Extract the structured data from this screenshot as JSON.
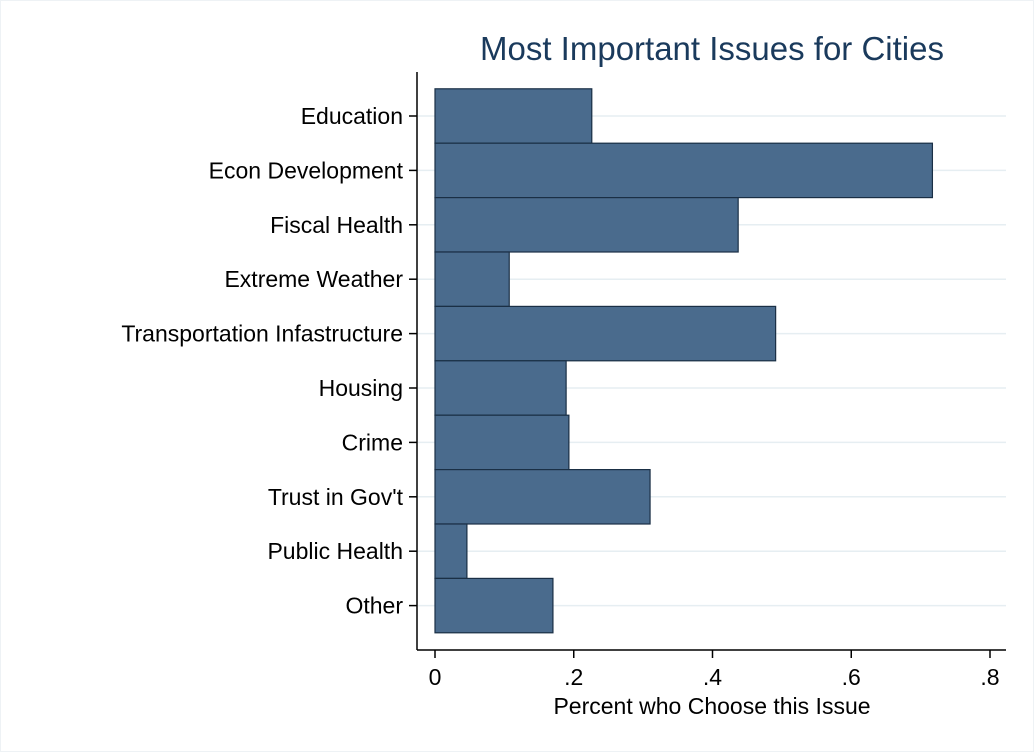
{
  "chart_data": {
    "type": "bar",
    "orientation": "horizontal",
    "title": "Most Important Issues for Cities",
    "xlabel": "Percent who Choose this Issue",
    "ylabel": "",
    "xlim": [
      0,
      0.8
    ],
    "x_ticks": [
      0,
      0.2,
      0.4,
      0.6,
      0.8
    ],
    "x_tick_labels": [
      "0",
      ".2",
      ".4",
      ".6",
      ".8"
    ],
    "categories": [
      "Education",
      "Econ Development",
      "Fiscal Health",
      "Extreme Weather",
      "Transportation Infastructure",
      "Housing",
      "Crime",
      "Trust in Gov't",
      "Public Health",
      "Other"
    ],
    "values": [
      0.226,
      0.717,
      0.437,
      0.107,
      0.491,
      0.189,
      0.193,
      0.31,
      0.046,
      0.17
    ],
    "grid": true,
    "bar_color": "#4a6b8d",
    "bar_edge_color": "#1a2f45",
    "title_color": "#1a3a5c"
  }
}
